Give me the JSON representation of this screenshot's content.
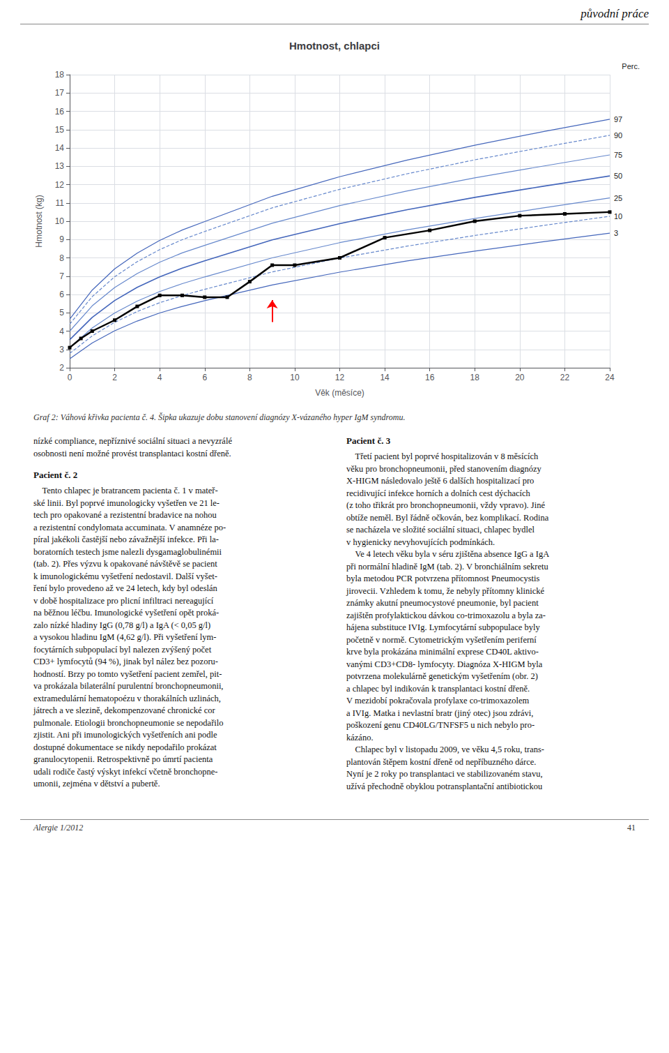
{
  "page": {
    "header": "původní práce",
    "caption": "Graf 2: Váhová křivka pacienta č. 4. Šipka ukazuje dobu stanovení diagnózy X-vázaného hyper IgM syndromu.",
    "columns": [
      [
        {
          "text": "nízké compliance, nepříznivé sociální situaci a nevyzrálé\nosobnosti není možné provést transplantaci kostní dřeně."
        },
        {
          "heading": "Pacient č. 2",
          "text": "    Tento chlapec je bratrancem pacienta č. 1 v mateř-\nské linii. Byl poprvé imunologicky vyšetřen ve 21 le-\ntech pro opakované a rezistentní bradavice na nohou\na rezistentní condylomata accuminata. V anamnéze po-\npíral jakékoli častější nebo závažnější infekce. Při la-\nboratorních testech jsme nalezli dysgamaglobulinémii\n(tab. 2). Přes výzvu k opakované návštěvě se pacient\nk imunologickému vyšetření nedostavil. Další vyšet-\nření bylo provedeno až ve 24 letech, kdy byl odeslán\nv době hospitalizace pro plicní infiltraci nereagující\nna běžnou léčbu. Imunologické vyšetření opět proká-\nzalo nízké hladiny IgG (0,78 g/l) a IgA (< 0,05 g/l)\na vysokou hladinu IgM (4,62 g/l). Při vyšetření lym-\nfocytárních subpopulací byl nalezen zvýšený počet\nCD3+ lymfocytů (94 %), jinak byl nález bez pozoru-\nhodností. Brzy po tomto vyšetření pacient zemřel, pit-\nva prokázala bilaterální purulentní bronchopneumonii,\nextramedulární hematopoézu v thorakálních uzlinách,\njátrech a ve slezině, dekompenzované chronické cor\npulmonale. Etiologii bronchopneumonie se nepodařilo\nzjistit. Ani při imunologických vyšetřeních ani podle\ndostupné dokumentace se nikdy nepodařilo prokázat\ngranulocytopenii. Retrospektivně po úmrtí pacienta\nudali rodiče častý výskyt infekcí včetně bronchopne-\numonii, zejména v dětství a pubertě."
        }
      ],
      [
        {
          "heading": "Pacient č. 3",
          "text": "    Třetí pacient byl poprvé hospitalizován v 8 měsících\nvěku pro bronchopneumonii, před stanovením diagnózy\nX-HIGM následovalo ještě 6 dalších hospitalizací pro\nrecidivující infekce horních a dolních cest dýchacích\n(z toho třikrát pro bronchopneumonii, vždy vpravo). Jiné\nobtíže neměl. Byl řádně očkován, bez komplikací. Rodina\nse nacházela ve složité sociální situaci, chlapec bydlel\nv hygienicky nevyhovujících podmínkách.\n    Ve 4 letech věku byla v séru zjištěna absence IgG a IgA\npři normální hladině IgM (tab. 2). V bronchiálním sekretu\nbyla metodou PCR potvrzena přítomnost Pneumocystis\njirovecii. Vzhledem k tomu, že nebyly přítomny klinické\nznámky akutní pneumocystové pneumonie, byl pacient\nzajištěn profylaktickou dávkou co-trimoxazolu a byla za-\nhájena substituce IVIg. Lymfocytární subpopulace byly\npočetně v normě. Cytometrickým vyšetřením periferní\nkrve byla prokázána minimální exprese CD40L aktivo-\nvanými CD3+CD8- lymfocyty. Diagnóza X-HIGM byla\npotvrzena molekulárně genetickým vyšetřením (obr. 2)\na chlapec byl indikován k transplantaci kostní dřeně.\nV mezidobí pokračovala profylaxe co-trimoxazolem\na IVIg. Matka i nevlastní bratr (jiný otec) jsou zdrávi,\npoškození genu CD40LG/TNFSF5 u nich nebylo pro-\nkázáno.\n    Chlapec byl v listopadu 2009, ve věku 4,5 roku, trans-\nplantován štěpem kostní dřeně od nepříbuzného dárce.\nNyní je 2 roky po transplantaci ve stabilizovaném stavu,\nužívá přechodně obyklou potransplantační antibiotickou"
        }
      ]
    ],
    "footer_left": "Alergie 1/2012",
    "footer_right": "41"
  },
  "chart_data": {
    "type": "line",
    "title": "Hmotnost, chlapci",
    "xlabel": "Věk (měsíce)",
    "ylabel": "Hmotnost (kg)",
    "xlim": [
      0,
      24
    ],
    "ylim": [
      2,
      18
    ],
    "xticks": [
      0,
      2,
      4,
      6,
      8,
      10,
      12,
      14,
      16,
      18,
      20,
      22,
      24
    ],
    "yticks": [
      2,
      3,
      4,
      5,
      6,
      7,
      8,
      9,
      10,
      11,
      12,
      13,
      14,
      15,
      16,
      17,
      18
    ],
    "grid": true,
    "series": [
      {
        "name": "97",
        "color": "#4466bb",
        "line_style": "solid",
        "x": [
          0,
          1,
          2,
          3,
          4,
          5,
          6,
          9,
          12,
          15,
          18,
          21,
          24
        ],
        "values": [
          4.65,
          6.24,
          7.4,
          8.26,
          8.95,
          9.52,
          9.98,
          11.36,
          12.43,
          13.34,
          14.15,
          14.88,
          15.57
        ]
      },
      {
        "name": "90",
        "color": "#6688cc",
        "line_style": "dashed",
        "x": [
          0,
          1,
          2,
          3,
          4,
          5,
          6,
          9,
          12,
          15,
          18,
          21,
          24
        ],
        "values": [
          4.38,
          5.88,
          6.97,
          7.79,
          8.45,
          8.99,
          9.44,
          10.73,
          11.74,
          12.59,
          13.35,
          14.03,
          14.69
        ]
      },
      {
        "name": "75",
        "color": "#6688cc",
        "line_style": "solid",
        "x": [
          0,
          1,
          2,
          3,
          4,
          5,
          6,
          9,
          12,
          15,
          18,
          21,
          24
        ],
        "values": [
          4.0,
          5.38,
          6.38,
          7.14,
          7.76,
          8.27,
          8.68,
          9.89,
          10.85,
          11.65,
          12.37,
          13.0,
          13.62
        ]
      },
      {
        "name": "50",
        "color": "#4466bb",
        "line_style": "solid",
        "x": [
          0,
          1,
          2,
          3,
          4,
          5,
          6,
          9,
          12,
          15,
          18,
          21,
          24
        ],
        "values": [
          3.53,
          4.75,
          5.67,
          6.39,
          6.96,
          7.44,
          7.84,
          8.98,
          9.87,
          10.63,
          11.3,
          11.9,
          12.47
        ]
      },
      {
        "name": "25",
        "color": "#6688cc",
        "line_style": "solid",
        "x": [
          0,
          1,
          2,
          3,
          4,
          5,
          6,
          9,
          12,
          15,
          18,
          21,
          24
        ],
        "values": [
          3.1,
          4.17,
          4.99,
          5.64,
          6.16,
          6.59,
          6.96,
          8.0,
          8.83,
          9.53,
          10.15,
          10.72,
          11.27
        ]
      },
      {
        "name": "10",
        "color": "#6688cc",
        "line_style": "dashed",
        "x": [
          0,
          1,
          2,
          3,
          4,
          5,
          6,
          9,
          12,
          15,
          18,
          21,
          24
        ],
        "values": [
          2.78,
          3.74,
          4.48,
          5.07,
          5.55,
          5.94,
          6.28,
          7.23,
          7.99,
          8.64,
          9.22,
          9.76,
          10.27
        ]
      },
      {
        "name": "3",
        "color": "#4466bb",
        "line_style": "solid",
        "x": [
          0,
          1,
          2,
          3,
          4,
          5,
          6,
          9,
          12,
          15,
          18,
          21,
          24
        ],
        "values": [
          2.49,
          3.35,
          4.02,
          4.55,
          4.99,
          5.35,
          5.66,
          6.52,
          7.22,
          7.83,
          8.37,
          8.87,
          9.35
        ]
      },
      {
        "color": "#000000",
        "line_style": "solid",
        "marker": "square",
        "x": [
          0,
          0.5,
          1,
          2,
          3,
          4,
          5,
          6,
          7,
          8,
          9,
          10,
          12,
          14,
          16,
          18,
          20,
          22,
          24
        ],
        "values": [
          3.1,
          3.6,
          4.0,
          4.6,
          5.35,
          5.95,
          5.95,
          5.85,
          5.85,
          6.7,
          7.6,
          7.6,
          8.0,
          9.1,
          9.5,
          10.0,
          10.3,
          10.4,
          10.5
        ]
      }
    ],
    "annotations": [
      {
        "type": "arrow",
        "x": 9.0,
        "y_start": 4.5,
        "y_end": 5.7,
        "color": "red"
      },
      {
        "type": "text",
        "text": "Perc."
      }
    ]
  }
}
